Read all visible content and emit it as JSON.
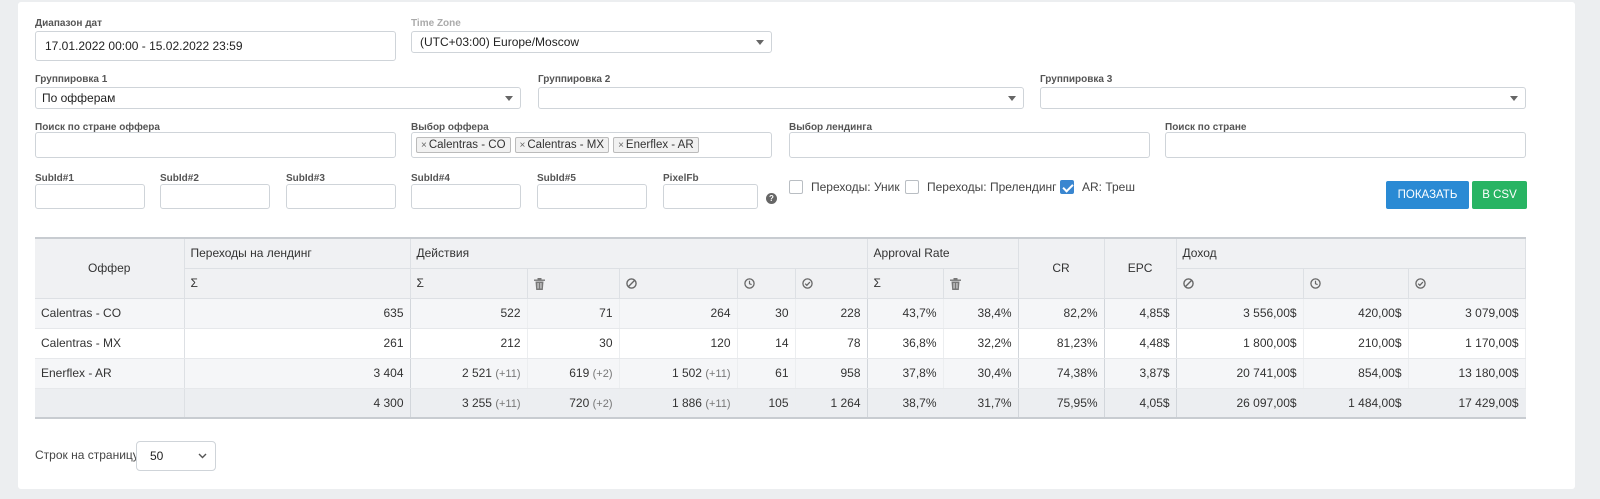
{
  "filters": {
    "date_range": {
      "label": "Диапазон дат",
      "value": "17.01.2022 00:00 - 15.02.2022 23:59"
    },
    "time_zone": {
      "label": "Time Zone",
      "value": "(UTC+03:00) Europe/Moscow"
    },
    "group1": {
      "label": "Группировка 1",
      "value": "По офферам"
    },
    "group2": {
      "label": "Группировка 2",
      "value": ""
    },
    "group3": {
      "label": "Группировка 3",
      "value": ""
    },
    "offer_country_search": {
      "label": "Поиск по стране оффера",
      "value": ""
    },
    "offer_select": {
      "label": "Выбор оффера",
      "tags": [
        "Calentras - CO",
        "Calentras - MX",
        "Enerflex - AR"
      ]
    },
    "landing_select": {
      "label": "Выбор лендинга",
      "value": ""
    },
    "country_search": {
      "label": "Поиск по стране",
      "value": ""
    },
    "subids": [
      {
        "label": "SubId#1",
        "value": ""
      },
      {
        "label": "SubId#2",
        "value": ""
      },
      {
        "label": "SubId#3",
        "value": ""
      },
      {
        "label": "SubId#4",
        "value": ""
      },
      {
        "label": "SubId#5",
        "value": ""
      },
      {
        "label": "PixelFb",
        "value": ""
      }
    ],
    "help_glyph": "?",
    "checkboxes": [
      {
        "label": "Переходы: Уник",
        "checked": false
      },
      {
        "label": "Переходы: Прелендинг",
        "checked": false
      },
      {
        "label": "AR: Треш",
        "checked": true
      }
    ],
    "show_button": "Показать",
    "csv_button": "В CSV"
  },
  "colors": {
    "show_button": "#2a8ad4",
    "csv_button": "#28b463",
    "checkbox_on": "#3a86d0"
  },
  "table": {
    "groups": {
      "offer": "Оффер",
      "landing_clicks": "Переходы на лендинг",
      "actions": "Действия",
      "approval_rate": "Approval Rate",
      "cr": "CR",
      "epc": "EPC",
      "income": "Доход"
    },
    "sub_icons": [
      "sigma-icon",
      "sigma-icon",
      "trash-icon",
      "ban-icon",
      "clock-icon",
      "check-circle-icon",
      "sigma-icon",
      "trash-icon",
      "ban-icon",
      "clock-icon",
      "check-circle-icon"
    ],
    "sigma": "Σ",
    "rows": [
      {
        "name": "Calentras - CO",
        "clicks": "635",
        "act_total": "522",
        "act_total_inc": "",
        "act_trash": "71",
        "act_trash_inc": "",
        "act_rejected": "264",
        "act_rejected_inc": "",
        "act_hold": "30",
        "act_approved": "228",
        "ar_total": "43,7%",
        "ar_trash": "38,4%",
        "cr": "82,2%",
        "epc": "4,85$",
        "inc_rejected": "3 556,00$",
        "inc_hold": "420,00$",
        "inc_approved": "3 079,00$"
      },
      {
        "name": "Calentras - MX",
        "clicks": "261",
        "act_total": "212",
        "act_total_inc": "",
        "act_trash": "30",
        "act_trash_inc": "",
        "act_rejected": "120",
        "act_rejected_inc": "",
        "act_hold": "14",
        "act_approved": "78",
        "ar_total": "36,8%",
        "ar_trash": "32,2%",
        "cr": "81,23%",
        "epc": "4,48$",
        "inc_rejected": "1 800,00$",
        "inc_hold": "210,00$",
        "inc_approved": "1 170,00$"
      },
      {
        "name": "Enerflex - AR",
        "clicks": "3 404",
        "act_total": "2 521",
        "act_total_inc": "(+11)",
        "act_trash": "619",
        "act_trash_inc": "(+2)",
        "act_rejected": "1 502",
        "act_rejected_inc": "(+11)",
        "act_hold": "61",
        "act_approved": "958",
        "ar_total": "37,8%",
        "ar_trash": "30,4%",
        "cr": "74,38%",
        "epc": "3,87$",
        "inc_rejected": "20 741,00$",
        "inc_hold": "854,00$",
        "inc_approved": "13 180,00$"
      }
    ],
    "total": {
      "name": "",
      "clicks": "4 300",
      "act_total": "3 255",
      "act_total_inc": "(+11)",
      "act_trash": "720",
      "act_trash_inc": "(+2)",
      "act_rejected": "1 886",
      "act_rejected_inc": "(+11)",
      "act_hold": "105",
      "act_approved": "1 264",
      "ar_total": "38,7%",
      "ar_trash": "31,7%",
      "cr": "75,95%",
      "epc": "4,05$",
      "inc_rejected": "26 097,00$",
      "inc_hold": "1 484,00$",
      "inc_approved": "17 429,00$"
    }
  },
  "pagination": {
    "label": "Строк на страницу:",
    "value": "50"
  }
}
